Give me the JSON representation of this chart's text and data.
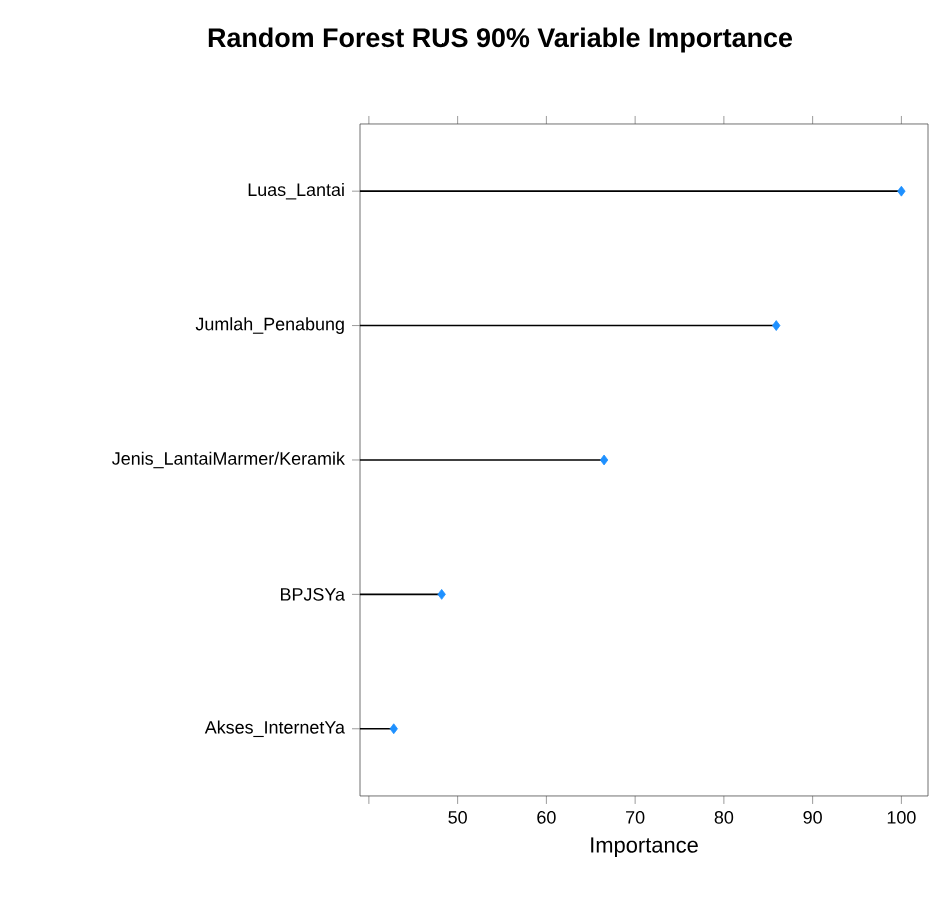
{
  "chart_data": {
    "type": "lollipop",
    "orientation": "horizontal",
    "title": "Random Forest RUS 90% Variable Importance",
    "xlabel": "Importance",
    "categories": [
      "Luas_Lantai",
      "Jumlah_Penabung",
      "Jenis_LantaiMarmer/Keramik",
      "BPJSYa",
      "Akses_InternetYa"
    ],
    "values": [
      100,
      85.9,
      66.5,
      48.2,
      42.8
    ],
    "color": "#1e90ff",
    "marker": "diamond",
    "xlim": [
      39,
      103
    ],
    "xticks": [
      {
        "value": 40,
        "label": null
      },
      50,
      60,
      70,
      80,
      90,
      100
    ]
  }
}
